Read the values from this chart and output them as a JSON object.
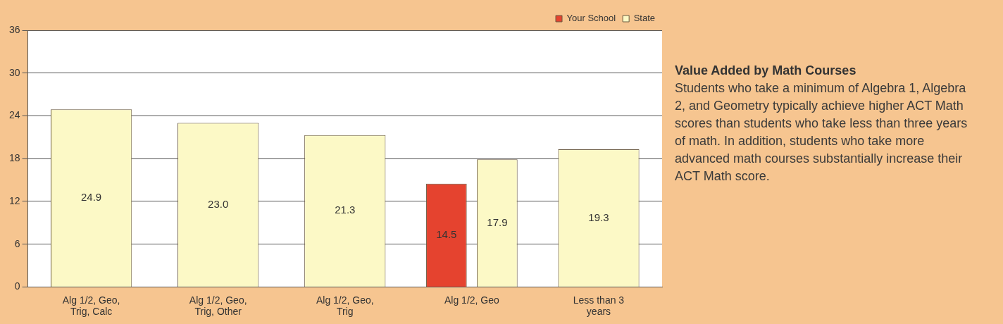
{
  "chart_data": {
    "type": "bar",
    "categories": [
      "Alg 1/2, Geo, Trig, Calc",
      "Alg 1/2, Geo, Trig, Other",
      "Alg 1/2, Geo, Trig",
      "Alg 1/2, Geo",
      "Less than 3 years"
    ],
    "series": [
      {
        "name": "Your School",
        "color": "#e5432f",
        "values": [
          null,
          null,
          null,
          14.5,
          null
        ],
        "value_labels": [
          null,
          null,
          null,
          "14.5",
          null
        ]
      },
      {
        "name": "State",
        "color": "#fcf9c6",
        "values": [
          24.9,
          23.0,
          21.3,
          17.9,
          19.3
        ],
        "value_labels": [
          "24.9",
          "23.0",
          "21.3",
          "17.9",
          "19.3"
        ]
      }
    ],
    "ylim": [
      0,
      36
    ],
    "yticks": [
      0,
      6,
      12,
      18,
      24,
      30,
      36
    ],
    "grid": "y",
    "legend": "top right",
    "annotations": [
      "Value Added by Math Courses",
      "Students who take a minimum of Algebra 1, Algebra 2, and Geometry typically achieve higher ACT Math scores than students who take less than three years of math.  In addition, students who take more advanced math courses substantially increase their ACT Math score."
    ]
  }
}
